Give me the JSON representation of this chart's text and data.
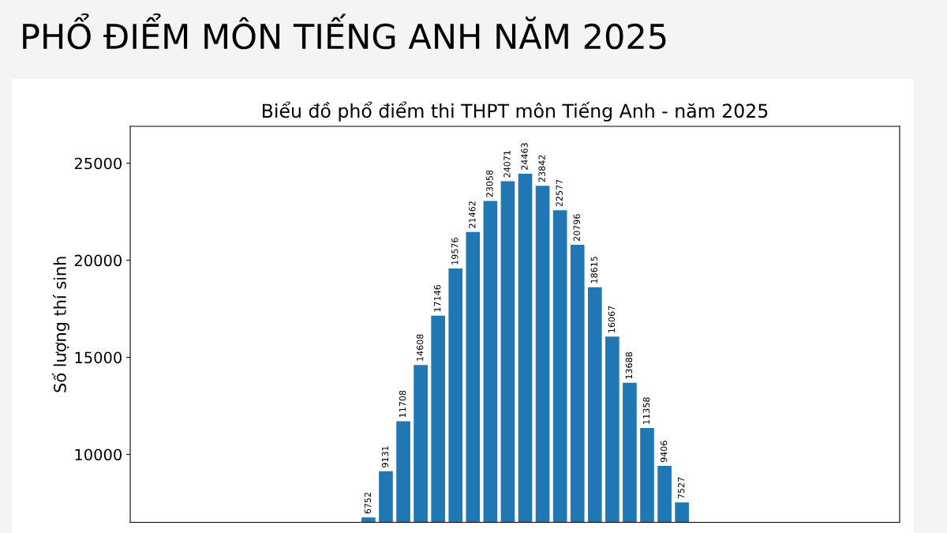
{
  "chart_data": {
    "type": "bar",
    "title": "PHỔ ĐIỂM MÔN TIẾNG ANH NĂM 2025",
    "subtitle": "Biểu đồ phổ điểm thi THPT môn Tiếng Anh - năm 2025",
    "ylabel": "Số lượng thí sinh",
    "categories": [
      null,
      null,
      null,
      null,
      null,
      null,
      null,
      null,
      null,
      null,
      null,
      null,
      null,
      null,
      null,
      null,
      null,
      null,
      null,
      null,
      null,
      null,
      null,
      null,
      null,
      null,
      null,
      null,
      null,
      null,
      null,
      null,
      null,
      null,
      null,
      null,
      null,
      null,
      null,
      null,
      null,
      null,
      null,
      null
    ],
    "values": [
      null,
      null,
      null,
      null,
      null,
      null,
      null,
      null,
      null,
      null,
      null,
      null,
      null,
      6752,
      9131,
      11708,
      14608,
      17146,
      19576,
      21462,
      23058,
      24071,
      24463,
      23842,
      22577,
      20796,
      18615,
      16067,
      13688,
      11358,
      9406,
      7527,
      null,
      null,
      null,
      null,
      null,
      null,
      null,
      null,
      null,
      null,
      null,
      null
    ],
    "color": "#1f77b4",
    "ylim": [
      6500,
      26900
    ],
    "yticks": [
      10000,
      15000,
      20000,
      25000
    ],
    "tick_labels": "y",
    "data_labels": true,
    "grid": false
  }
}
